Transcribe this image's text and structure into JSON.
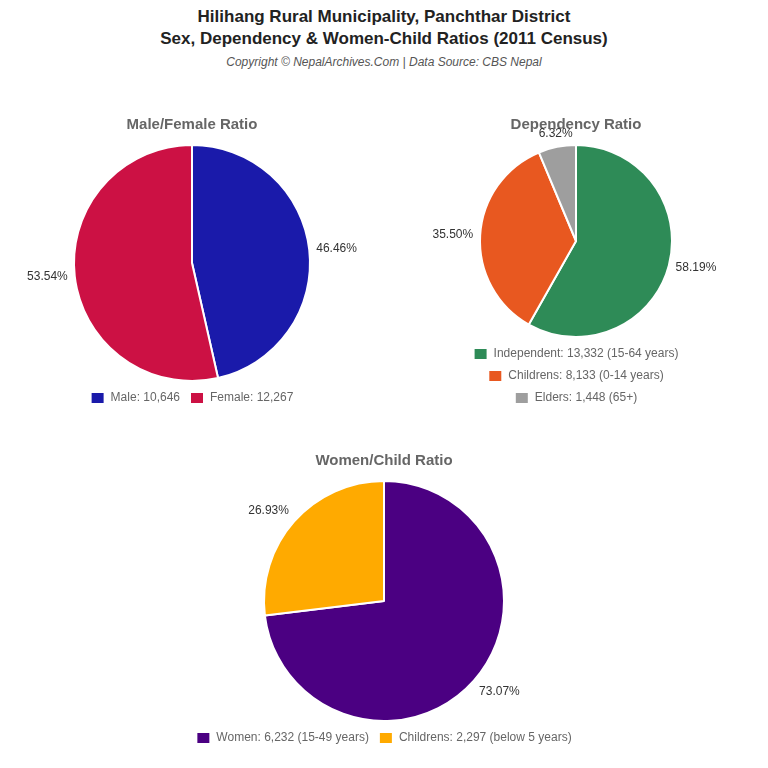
{
  "title": [
    "Hilihang Rural Municipality, Panchthar District",
    "Sex, Dependency & Women-Child Ratios (2011 Census)"
  ],
  "subtitle": "Copyright © NepalArchives.Com | Data Source: CBS Nepal",
  "chart_data": [
    {
      "type": "pie",
      "title": "Male/Female Ratio",
      "categories": [
        "Male: 10,646",
        "Female: 12,267"
      ],
      "values": [
        46.46,
        53.54
      ],
      "value_labels": [
        "46.46%",
        "53.54%"
      ],
      "colors": [
        "#1a1aaa",
        "#cc1144"
      ],
      "data_labels": true,
      "legend": "bottom"
    },
    {
      "type": "pie",
      "title": "Dependency Ratio",
      "categories": [
        "Independent: 13,332 (15-64 years)",
        "Childrens: 8,133 (0-14 years)",
        "Elders: 1,448 (65+)"
      ],
      "values": [
        58.19,
        35.5,
        6.32
      ],
      "value_labels": [
        "58.19%",
        "35.50%",
        "6.32%"
      ],
      "colors": [
        "#2e8b57",
        "#e85820",
        "#9e9e9e"
      ],
      "data_labels": true,
      "legend": "bottom"
    },
    {
      "type": "pie",
      "title": "Women/Child Ratio",
      "categories": [
        "Women: 6,232 (15-49 years)",
        "Childrens: 2,297 (below 5 years)"
      ],
      "values": [
        73.07,
        26.93
      ],
      "value_labels": [
        "73.07%",
        "26.93%"
      ],
      "colors": [
        "#4b0082",
        "#ffaa00"
      ],
      "data_labels": true,
      "legend": "bottom"
    }
  ]
}
